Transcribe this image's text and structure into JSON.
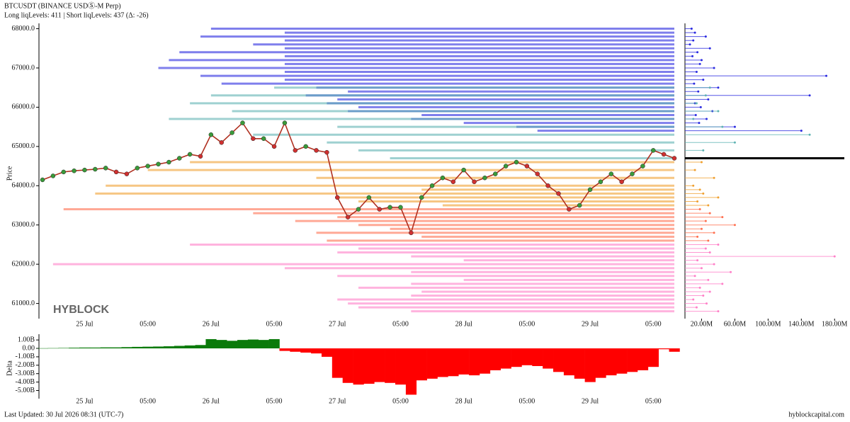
{
  "header": {
    "title": "BTCUSDT (BINANCE USDⓈ-M Perp)",
    "subtitle": "Long liqLevels: 411 | Short liqLevels: 437 (Δ: -26)"
  },
  "footer": {
    "updated": "Last Updated: 30 Jul 2026 08:31 (UTC-7)",
    "site": "hyblockcapital.com"
  },
  "chart_data": [
    {
      "type": "line",
      "ylabel": "Price",
      "annotation": "HYBLOCK",
      "categories": [
        null,
        null,
        null,
        null,
        "25 Jul",
        null,
        null,
        null,
        null,
        null,
        "05:00",
        null,
        null,
        null,
        null,
        null,
        "26 Jul",
        null,
        null,
        null,
        null,
        null,
        "05:00",
        null,
        null,
        null,
        null,
        null,
        "27 Jul",
        null,
        null,
        null,
        null,
        null,
        "05:00",
        null,
        null,
        null,
        null,
        null,
        "28 Jul",
        null,
        null,
        null,
        null,
        null,
        "05:00",
        null,
        null,
        null,
        null,
        null,
        "29 Jul",
        null,
        null,
        null,
        null,
        null,
        "05:00",
        null,
        null
      ],
      "values": [
        64150,
        64250,
        64350,
        64380,
        64400,
        64420,
        64450,
        64350,
        64300,
        64450,
        64500,
        64550,
        64600,
        64700,
        64800,
        64750,
        65300,
        65100,
        65350,
        65600,
        65200,
        65200,
        65000,
        65600,
        64900,
        65000,
        64900,
        64850,
        63700,
        63200,
        63400,
        63700,
        63400,
        63450,
        63450,
        62800,
        63700,
        64000,
        64200,
        64100,
        64400,
        64100,
        64200,
        64300,
        64500,
        64600,
        64500,
        64300,
        64000,
        63800,
        63400,
        63500,
        63900,
        64100,
        64300,
        64100,
        64300,
        64500,
        64900,
        64800,
        64700
      ],
      "color": "#b03020",
      "up_color": "#3a9a3a",
      "down_color": "#d03030",
      "ylim": [
        60650,
        68100
      ],
      "yticks": [
        {
          "value": 61000,
          "label": "61000.0"
        },
        {
          "value": 62000,
          "label": "62000.0"
        },
        {
          "value": 63000,
          "label": "63000.0"
        },
        {
          "value": 64000,
          "label": "64000.0"
        },
        {
          "value": 65000,
          "label": "65000.0"
        },
        {
          "value": 66000,
          "label": "66000.0"
        },
        {
          "value": 67000,
          "label": "67000.0"
        },
        {
          "value": 68000,
          "label": "68000.0"
        }
      ],
      "size_xlim": [
        0,
        190000000
      ],
      "size_xticks": [
        {
          "value": 20000000,
          "label": "20.00M"
        },
        {
          "value": 60000000,
          "label": "60.00M"
        },
        {
          "value": 100000000,
          "label": "100.00M"
        },
        {
          "value": 140000000,
          "label": "140.00M"
        },
        {
          "value": 180000000,
          "label": "180.00M"
        }
      ],
      "levels": [
        {
          "color": "#2a2ae0",
          "prices": [
            68000,
            67900,
            67800,
            67700,
            67600,
            67500,
            67400,
            67300,
            67200,
            67100,
            67000,
            66900,
            66800,
            66700,
            66600,
            66500,
            66400,
            66300,
            66200,
            66100,
            66000,
            65900,
            65800,
            65700,
            65600,
            65500,
            65400
          ],
          "starts": [
            16,
            23,
            15,
            23,
            20,
            23,
            13,
            23,
            12,
            23,
            11,
            23,
            15,
            23,
            17,
            26,
            29,
            25,
            28,
            27,
            30,
            29,
            36,
            35,
            40,
            45,
            47
          ],
          "sizes": [
            8000000.0,
            12000000.0,
            25000000.0,
            10000000.0,
            6000000.0,
            30000000.0,
            15000000.0,
            9000000.0,
            20000000.0,
            18000000.0,
            35000000.0,
            14000000.0,
            170000000.0,
            22000000.0,
            11000000.0,
            40000000.0,
            16000000.0,
            150000000.0,
            28000000.0,
            12000000.0,
            19000000.0,
            33000000.0,
            13000000.0,
            26000000.0,
            17000000.0,
            60000000.0,
            140000000.0
          ]
        },
        {
          "color": "#5fb3b3",
          "prices": [
            66500,
            66300,
            66100,
            65900,
            65700,
            65500,
            65300,
            65100,
            64900,
            64700
          ],
          "starts": [
            22,
            16,
            14,
            18,
            12,
            28,
            20,
            27,
            30,
            33
          ],
          "sizes": [
            30000000.0,
            25000000.0,
            14000000.0,
            40000000.0,
            10000000.0,
            45000000.0,
            150000000.0,
            60000000.0,
            22000000.0,
            18000000.0
          ]
        },
        {
          "color": "#f0a030",
          "prices": [
            64600,
            64400,
            64200,
            64000,
            63900,
            63800,
            63700,
            63600,
            63500
          ],
          "starts": [
            14,
            10,
            26,
            6,
            36,
            5,
            28,
            30,
            38
          ],
          "sizes": [
            20000000.0,
            12000000.0,
            35000000.0,
            10000000.0,
            18000000.0,
            22000000.0,
            40000000.0,
            15000000.0,
            28000000.0
          ]
        },
        {
          "color": "#ff7050",
          "prices": [
            63400,
            63300,
            63200,
            63100,
            63000,
            62900,
            62800,
            62700,
            62600
          ],
          "starts": [
            2,
            20,
            28,
            24,
            30,
            33,
            26,
            36,
            27
          ],
          "sizes": [
            18000000.0,
            30000000.0,
            45000000.0,
            25000000.0,
            60000000.0,
            20000000.0,
            35000000.0,
            15000000.0,
            28000000.0
          ]
        },
        {
          "color": "#ff80c8",
          "prices": [
            62500,
            62400,
            62300,
            62200,
            62100,
            62000,
            61900,
            61800,
            61700,
            61600,
            61500,
            61400,
            61300,
            61200,
            61100,
            61000,
            60900,
            60800
          ],
          "starts": [
            14,
            30,
            28,
            35,
            40,
            1,
            23,
            35,
            28,
            40,
            35,
            30,
            36,
            35,
            28,
            29,
            30,
            35
          ],
          "sizes": [
            40000000.0,
            25000000.0,
            30000000.0,
            180000000.0,
            15000000.0,
            35000000.0,
            20000000.0,
            55000000.0,
            12000000.0,
            28000000.0,
            45000000.0,
            18000000.0,
            30000000.0,
            22000000.0,
            10000000.0,
            26000000.0,
            14000000.0,
            40000000.0
          ]
        }
      ]
    },
    {
      "type": "area",
      "ylabel": "Delta",
      "pos_color": "#0a7a0a",
      "neg_color": "#ff0000",
      "categories": [
        null,
        null,
        null,
        null,
        "25 Jul",
        null,
        null,
        null,
        null,
        null,
        "05:00",
        null,
        null,
        null,
        null,
        null,
        "26 Jul",
        null,
        null,
        null,
        null,
        null,
        "05:00",
        null,
        null,
        null,
        null,
        null,
        "27 Jul",
        null,
        null,
        null,
        null,
        null,
        "05:00",
        null,
        null,
        null,
        null,
        null,
        "28 Jul",
        null,
        null,
        null,
        null,
        null,
        "05:00",
        null,
        null,
        null,
        null,
        null,
        "29 Jul",
        null,
        null,
        null,
        null,
        null,
        "05:00",
        null,
        null
      ],
      "values": [
        20000000.0,
        30000000.0,
        50000000.0,
        80000000.0,
        100000000.0,
        100000000.0,
        120000000.0,
        120000000.0,
        150000000.0,
        180000000.0,
        200000000.0,
        220000000.0,
        250000000.0,
        300000000.0,
        350000000.0,
        400000000.0,
        1100000000.0,
        1000000000.0,
        900000000.0,
        1000000000.0,
        1050000000.0,
        1000000000.0,
        1100000000.0,
        -300000000.0,
        -400000000.0,
        -500000000.0,
        -600000000.0,
        -1000000000.0,
        -3500000000.0,
        -4100000000.0,
        -4300000000.0,
        -4200000000.0,
        -4000000000.0,
        -4100000000.0,
        -4300000000.0,
        -5500000000.0,
        -3800000000.0,
        -3600000000.0,
        -3400000000.0,
        -3300000000.0,
        -3100000000.0,
        -3200000000.0,
        -3000000000.0,
        -2600000000.0,
        -2400000000.0,
        -2200000000.0,
        -2000000000.0,
        -2100000000.0,
        -2400000000.0,
        -2800000000.0,
        -3200000000.0,
        -3600000000.0,
        -4000000000.0,
        -3500000000.0,
        -3200000000.0,
        -3000000000.0,
        -2800000000.0,
        -2600000000.0,
        -2200000000.0,
        -100000000.0,
        -400000000.0
      ],
      "ylim": [
        -5800000000,
        1600000000
      ],
      "yticks": [
        {
          "value": 1000000000,
          "label": "1.00B"
        },
        {
          "value": 0,
          "label": "0.00"
        },
        {
          "value": -1000000000,
          "label": "-1.00B"
        },
        {
          "value": -2000000000,
          "label": "-2.00B"
        },
        {
          "value": -3000000000,
          "label": "-3.00B"
        },
        {
          "value": -4000000000,
          "label": "-4.00B"
        },
        {
          "value": -5000000000,
          "label": "-5.00B"
        }
      ]
    }
  ]
}
